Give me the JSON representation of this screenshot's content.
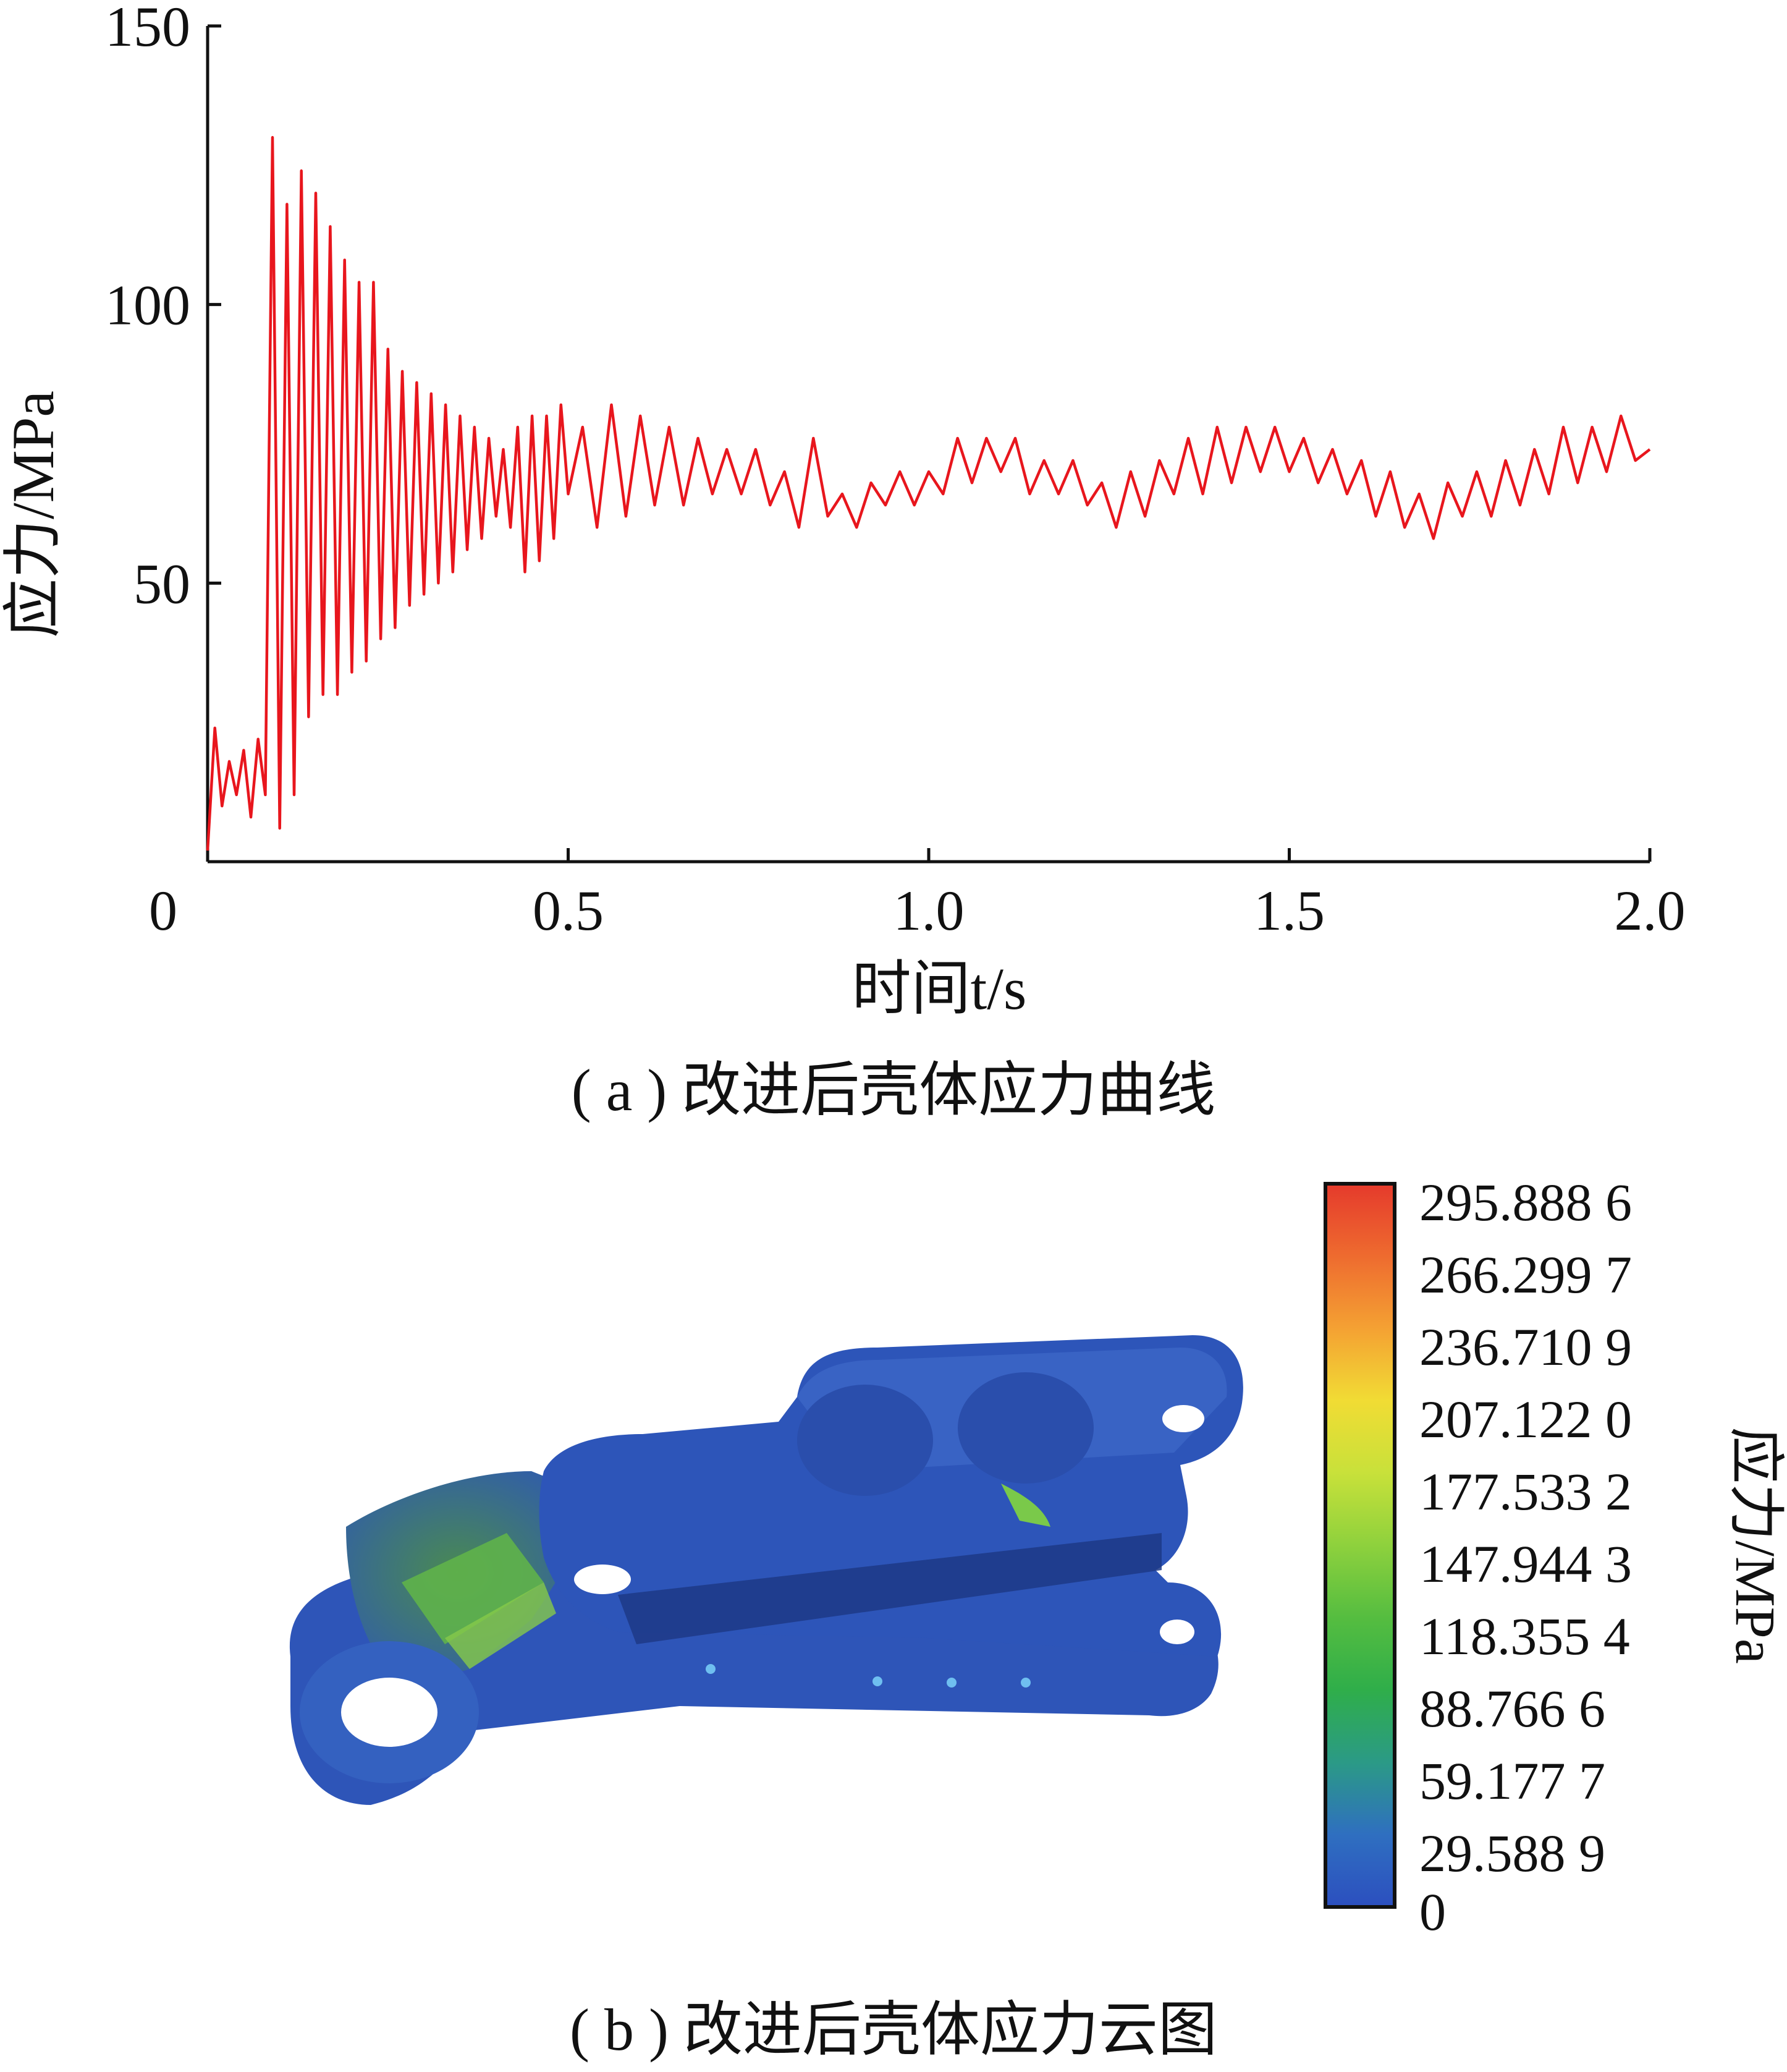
{
  "panel_a": {
    "caption": "( a ) 改进后壳体应力曲线"
  },
  "panel_b": {
    "caption": "( b ) 改进后壳体应力云图",
    "colorbar_title": "应力/MPa",
    "colorbar_values": [
      "295.888 6",
      "266.299 7",
      "236.710 9",
      "207.122 0",
      "177.533 2",
      "147.944 3",
      "118.355 4",
      "88.766 6",
      "59.177 7",
      "29.588 9",
      "0"
    ],
    "colorbar_colors": [
      "#e53a2c",
      "#ee6b2f",
      "#f4a133",
      "#f1dc34",
      "#c8e13a",
      "#8ed13d",
      "#55bd40",
      "#2fae4a",
      "#2b9a86",
      "#2f6fc0",
      "#2c4fbf"
    ]
  },
  "chart_data": [
    {
      "type": "line",
      "title": "",
      "xlabel": "时间t/s",
      "ylabel": "应力/MPa",
      "xlim": [
        0,
        2.0
      ],
      "ylim": [
        0,
        150
      ],
      "x_ticks": [
        0,
        0.5,
        1.0,
        1.5,
        2.0
      ],
      "x_tick_labels": [
        "0",
        "0.5",
        "1.0",
        "1.5",
        "2.0"
      ],
      "y_ticks": [
        50,
        100,
        150
      ],
      "y_tick_labels": [
        "50",
        "100",
        "150"
      ],
      "line_color": "#e8161d",
      "grid": false,
      "series": [
        {
          "x": [
            0.0,
            0.01,
            0.02,
            0.03,
            0.04,
            0.05,
            0.06,
            0.07,
            0.08,
            0.09,
            0.1,
            0.11,
            0.12,
            0.13,
            0.14,
            0.15,
            0.16,
            0.17,
            0.18,
            0.19,
            0.2,
            0.21,
            0.22,
            0.23,
            0.24,
            0.25,
            0.26,
            0.27,
            0.28,
            0.29,
            0.3,
            0.31,
            0.32,
            0.33,
            0.34,
            0.35,
            0.36,
            0.37,
            0.38,
            0.39,
            0.4,
            0.41,
            0.42,
            0.43,
            0.44,
            0.45,
            0.46,
            0.47,
            0.48,
            0.49,
            0.5,
            0.52,
            0.54,
            0.56,
            0.58,
            0.6,
            0.62,
            0.64,
            0.66,
            0.68,
            0.7,
            0.72,
            0.74,
            0.76,
            0.78,
            0.8,
            0.82,
            0.84,
            0.86,
            0.88,
            0.9,
            0.92,
            0.94,
            0.96,
            0.98,
            1.0,
            1.02,
            1.04,
            1.06,
            1.08,
            1.1,
            1.12,
            1.14,
            1.16,
            1.18,
            1.2,
            1.22,
            1.24,
            1.26,
            1.28,
            1.3,
            1.32,
            1.34,
            1.36,
            1.38,
            1.4,
            1.42,
            1.44,
            1.46,
            1.48,
            1.5,
            1.52,
            1.54,
            1.56,
            1.58,
            1.6,
            1.62,
            1.64,
            1.66,
            1.68,
            1.7,
            1.72,
            1.74,
            1.76,
            1.78,
            1.8,
            1.82,
            1.84,
            1.86,
            1.88,
            1.9,
            1.92,
            1.94,
            1.96,
            1.98,
            2.0
          ],
          "values": [
            2,
            24,
            10,
            18,
            12,
            20,
            8,
            22,
            12,
            130,
            6,
            118,
            12,
            124,
            26,
            120,
            30,
            114,
            30,
            108,
            34,
            104,
            36,
            104,
            40,
            92,
            42,
            88,
            46,
            86,
            48,
            84,
            50,
            82,
            52,
            80,
            56,
            78,
            58,
            76,
            62,
            74,
            60,
            78,
            52,
            80,
            54,
            80,
            58,
            82,
            66,
            78,
            60,
            82,
            62,
            80,
            64,
            78,
            64,
            76,
            66,
            74,
            66,
            74,
            64,
            70,
            60,
            76,
            62,
            66,
            60,
            68,
            64,
            70,
            64,
            70,
            66,
            76,
            68,
            76,
            70,
            76,
            66,
            72,
            66,
            72,
            64,
            68,
            60,
            70,
            62,
            72,
            66,
            76,
            66,
            78,
            68,
            78,
            70,
            78,
            70,
            76,
            68,
            74,
            66,
            72,
            62,
            70,
            60,
            66,
            58,
            68,
            62,
            70,
            62,
            72,
            64,
            74,
            66,
            78,
            68,
            78,
            70,
            80,
            72,
            74
          ]
        }
      ]
    }
  ]
}
